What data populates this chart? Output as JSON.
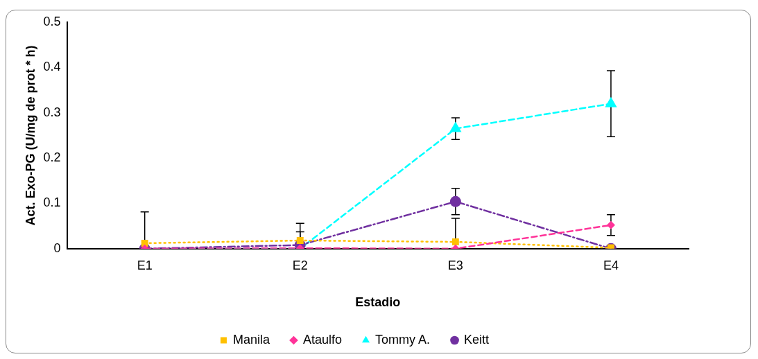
{
  "chart_data": {
    "type": "line",
    "xlabel": "Estadio",
    "ylabel": "Act. Exo-PG (U/mg de prot * h)",
    "categories": [
      "E1",
      "E2",
      "E3",
      "E4"
    ],
    "series": [
      {
        "name": "Manila",
        "color": "#ffc000",
        "marker": "square",
        "line_style": "dotted",
        "values": [
          0.012,
          0.018,
          0.015,
          0.002
        ],
        "errors": [
          [
            0.012,
            0.081
          ],
          [
            0.018,
            0.056
          ],
          [
            0.015,
            0.067
          ],
          null
        ]
      },
      {
        "name": "Ataulfo",
        "color": "#ff3399",
        "marker": "diamond",
        "line_style": "dashed",
        "values": [
          0,
          0.001,
          0,
          0.052
        ],
        "errors": [
          null,
          null,
          null,
          0.023
        ]
      },
      {
        "name": "Tommy A.",
        "color": "#00ffff",
        "marker": "triangle",
        "line_style": "dashed",
        "values": [
          0,
          0,
          0.265,
          0.32
        ],
        "errors": [
          null,
          null,
          0.024,
          0.073
        ]
      },
      {
        "name": "Keitt",
        "color": "#7030a0",
        "marker": "circle",
        "line_style": "dashdot",
        "values": [
          0,
          0.008,
          0.104,
          0
        ],
        "errors": [
          null,
          [
            0.008,
            0.037
          ],
          0.029,
          null
        ]
      }
    ],
    "ylim": [
      0,
      0.5
    ],
    "yticks": [
      0,
      0.1,
      0.2,
      0.3,
      0.4,
      0.5
    ],
    "grid": false,
    "legend": "bottom"
  }
}
